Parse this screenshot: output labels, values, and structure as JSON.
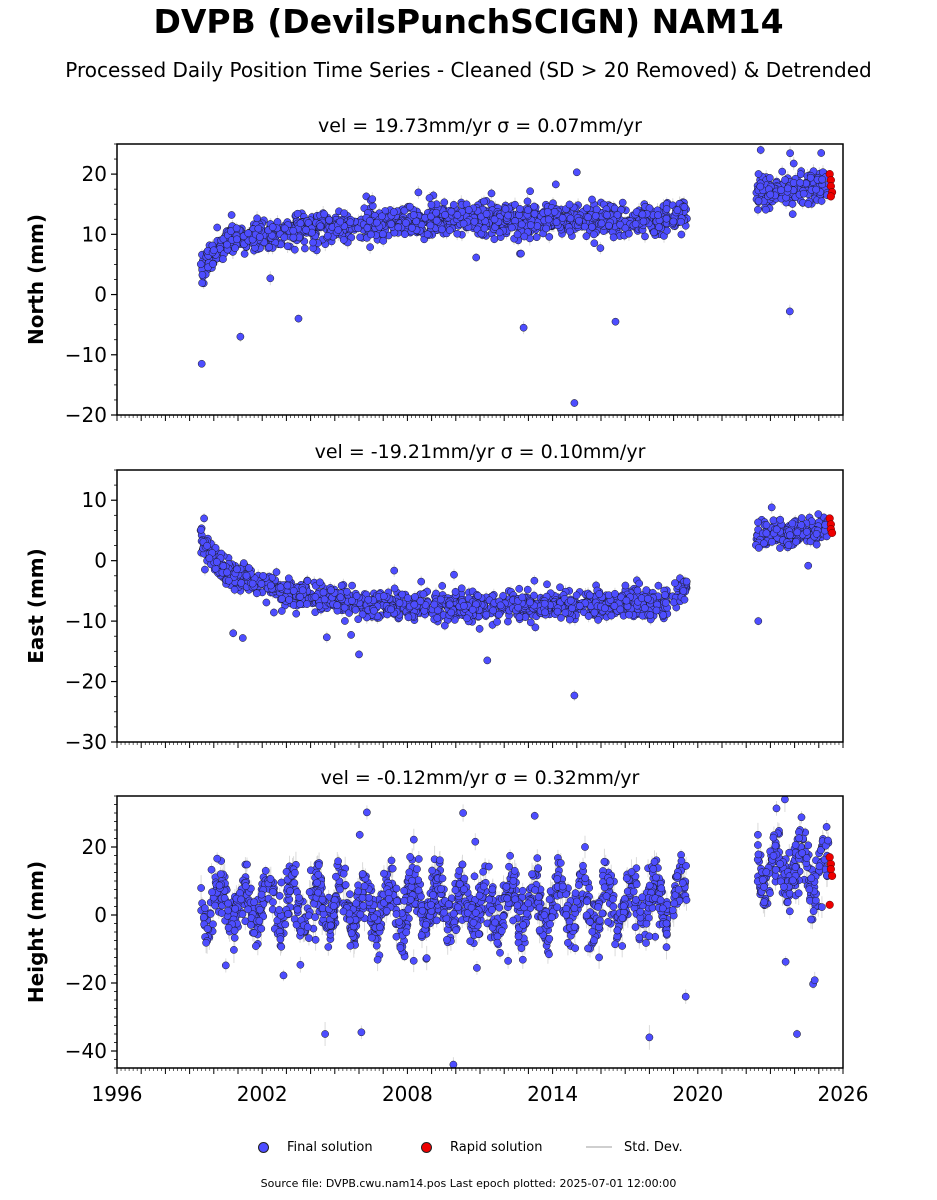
{
  "title": "DVPB (DevilsPunchSCIGN) NAM14",
  "subtitle": "Processed Daily Position Time Series - Cleaned (SD > 20 Removed) & Detrended",
  "legend": {
    "final": "Final solution",
    "rapid": "Rapid solution",
    "stddev": "Std. Dev."
  },
  "footer": "Source file: DVPB.cwu.nam14.pos  Last epoch plotted: 2025-07-01 12:00:00",
  "colors": {
    "final": "#4d4dff",
    "rapid": "#ee0000",
    "stddev": "#bdbdbd",
    "edge": "#1a1a1a"
  },
  "chart_data": [
    {
      "type": "scatter",
      "title": "vel = 19.73mm/yr   σ = 0.07mm/yr",
      "ylabel": "North (mm)",
      "xlim": [
        1996,
        2026
      ],
      "ylim": [
        -20,
        25
      ],
      "yticks": [
        -20,
        -10,
        0,
        10,
        20
      ],
      "grid": false,
      "trend": [
        [
          1999.5,
          4
        ],
        [
          2000.5,
          9
        ],
        [
          2004,
          11
        ],
        [
          2010,
          12.5
        ],
        [
          2018.6,
          12.5
        ],
        [
          2022.5,
          17
        ],
        [
          2025.5,
          18
        ]
      ],
      "spread": 2.3,
      "outliers": [
        {
          "x": 1999.5,
          "y": -11.5
        },
        {
          "x": 2001.1,
          "y": -7
        },
        {
          "x": 2003.5,
          "y": -4
        },
        {
          "x": 2012.8,
          "y": -5.5
        },
        {
          "x": 2014.9,
          "y": -18
        },
        {
          "x": 2016.6,
          "y": -4.5
        },
        {
          "x": 2022.6,
          "y": 24
        },
        {
          "x": 2023.8,
          "y": -2.8
        },
        {
          "x": 2025.1,
          "y": 23.5
        },
        {
          "x": 2015,
          "y": 20.3
        }
      ],
      "rapid": [
        {
          "x": 2025.45,
          "y": 20
        },
        {
          "x": 2025.5,
          "y": 19
        },
        {
          "x": 2025.5,
          "y": 18
        },
        {
          "x": 2025.55,
          "y": 17
        },
        {
          "x": 2025.5,
          "y": 16.3
        }
      ]
    },
    {
      "type": "scatter",
      "title": "vel = -19.21mm/yr   σ = 0.10mm/yr",
      "ylabel": "East (mm)",
      "xlim": [
        1996,
        2026
      ],
      "ylim": [
        -30,
        15
      ],
      "yticks": [
        -30,
        -20,
        -10,
        0,
        10
      ],
      "grid": false,
      "trend": [
        [
          1999.5,
          3
        ],
        [
          2000.5,
          -2
        ],
        [
          2003,
          -5
        ],
        [
          2007,
          -7.5
        ],
        [
          2012,
          -7.5
        ],
        [
          2018.6,
          -7
        ],
        [
          2022.5,
          4
        ],
        [
          2025.5,
          5.5
        ]
      ],
      "spread": 2.0,
      "outliers": [
        {
          "x": 1999.6,
          "y": 7
        },
        {
          "x": 2000.8,
          "y": -12
        },
        {
          "x": 2001.2,
          "y": -12.8
        },
        {
          "x": 2006,
          "y": -15.5
        },
        {
          "x": 2014.9,
          "y": -22.3
        },
        {
          "x": 2022.5,
          "y": -10
        },
        {
          "x": 2011.3,
          "y": -16.5
        }
      ],
      "rapid": [
        {
          "x": 2025.45,
          "y": 7
        },
        {
          "x": 2025.5,
          "y": 6
        },
        {
          "x": 2025.5,
          "y": 5.2
        },
        {
          "x": 2025.55,
          "y": 4.6
        }
      ]
    },
    {
      "type": "scatter",
      "title": "vel = -0.12mm/yr   σ = 0.32mm/yr",
      "ylabel": "Height (mm)",
      "xlim": [
        1996,
        2026
      ],
      "ylim": [
        -45,
        35
      ],
      "yticks": [
        -40,
        -20,
        0,
        20
      ],
      "grid": false,
      "trend": [
        [
          1999.5,
          3
        ],
        [
          2010,
          3
        ],
        [
          2018.6,
          3
        ],
        [
          2022.5,
          14
        ],
        [
          2025.5,
          12
        ]
      ],
      "spread": 7.5,
      "seasonal": 6,
      "outliers": [
        {
          "x": 2004.6,
          "y": -35
        },
        {
          "x": 2006.1,
          "y": -34.5
        },
        {
          "x": 2009.9,
          "y": -44
        },
        {
          "x": 2010.3,
          "y": 30
        },
        {
          "x": 2018,
          "y": -36
        },
        {
          "x": 2024.1,
          "y": -35
        },
        {
          "x": 2023.6,
          "y": 34
        },
        {
          "x": 2019.5,
          "y": -24
        }
      ],
      "rapid": [
        {
          "x": 2025.45,
          "y": 17
        },
        {
          "x": 2025.5,
          "y": 15
        },
        {
          "x": 2025.5,
          "y": 13.5
        },
        {
          "x": 2025.55,
          "y": 11.5
        },
        {
          "x": 2025.45,
          "y": 3
        }
      ]
    }
  ],
  "xticks": [
    1996,
    2002,
    2008,
    2014,
    2020,
    2026
  ],
  "segments": [
    [
      1999.45,
      2018.75
    ],
    [
      2018.95,
      2019.55
    ],
    [
      2022.4,
      2025.4
    ]
  ]
}
